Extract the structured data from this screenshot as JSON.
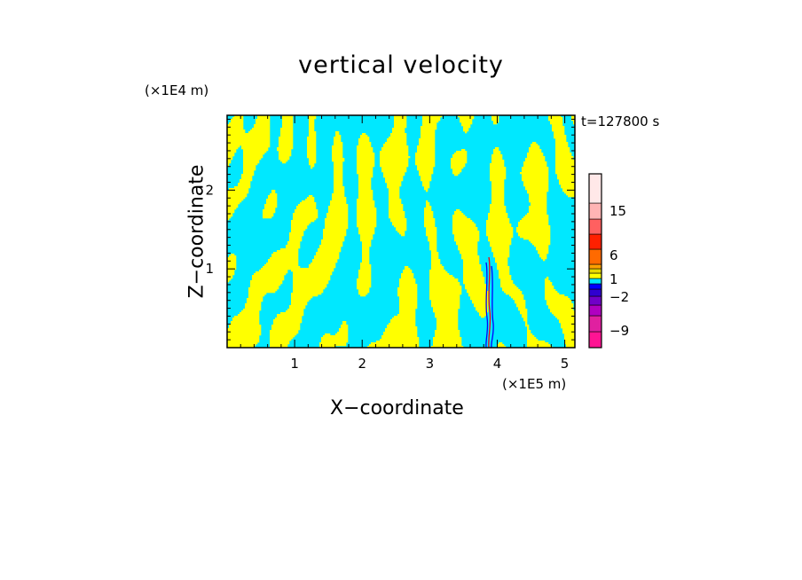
{
  "chart_data": {
    "type": "heatmap",
    "title": "vertical velocity",
    "xlabel": "X−coordinate",
    "ylabel": "Z−coordinate",
    "x_unit": "(×1E5 m)",
    "z_unit": "(×1E4 m)",
    "time_label": "t=127800 s",
    "xlim": [
      0,
      5.15
    ],
    "ylim": [
      0,
      2.95
    ],
    "x_ticks": [
      1,
      2,
      3,
      4,
      5
    ],
    "x_tick_labels": [
      "1",
      "2",
      "3",
      "4",
      "5"
    ],
    "y_ticks": [
      1,
      2
    ],
    "y_tick_labels": [
      "1",
      "2"
    ],
    "colorbar": {
      "levels": [
        {
          "color": "#ff1493"
        },
        {
          "color": "#e020a0"
        },
        {
          "color": "#b000c0"
        },
        {
          "color": "#7000c8"
        },
        {
          "color": "#3000d0"
        },
        {
          "color": "#0000ff"
        },
        {
          "color": "#00e8ff"
        },
        {
          "color": "#ffff00"
        },
        {
          "color": "#e8d800"
        },
        {
          "color": "#ffa000"
        },
        {
          "color": "#ff6a00"
        },
        {
          "color": "#ff2000"
        },
        {
          "color": "#ff6060"
        },
        {
          "color": "#ffb4b4"
        },
        {
          "color": "#ffe8e8"
        }
      ],
      "labels": [
        "15",
        "6",
        "1",
        "−2",
        "−9"
      ]
    },
    "field_colors": {
      "negative": "#00e8ff",
      "positive": "#ffff00",
      "extreme_pos": "#ff0000",
      "extreme_neg": "#0000ff"
    }
  }
}
